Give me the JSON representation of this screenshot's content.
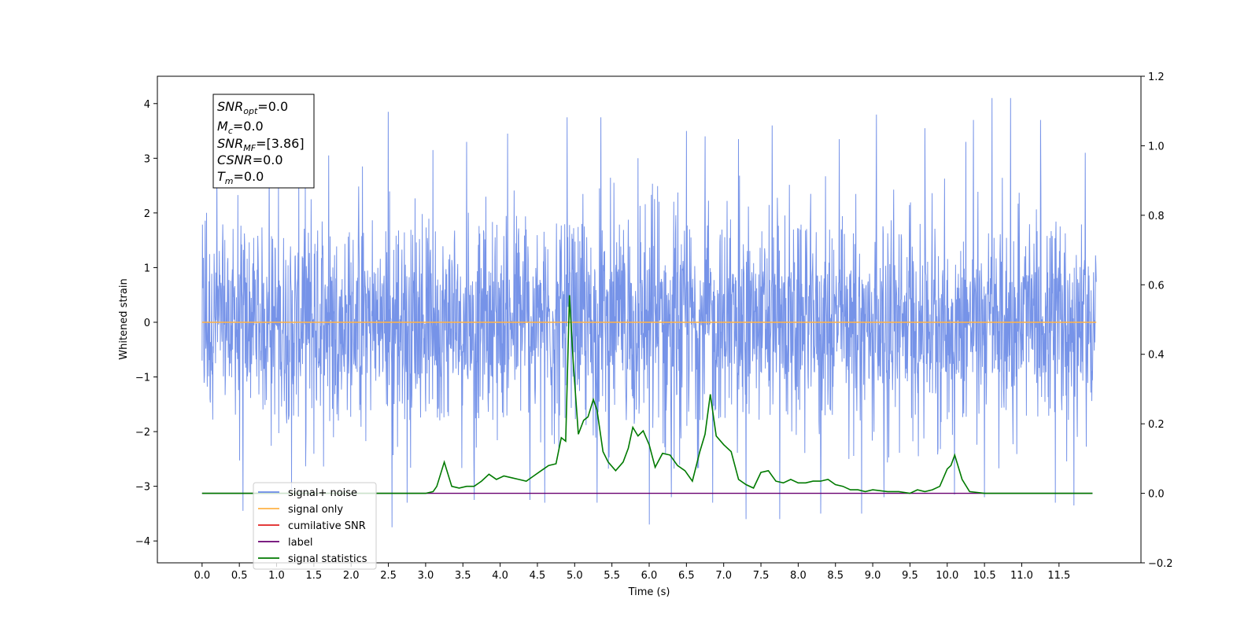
{
  "chart_data": {
    "type": "line",
    "xlabel": "Time (s)",
    "ylabel": "Whitened strain",
    "xlim": [
      -0.6,
      12.6
    ],
    "ylim": [
      -4.4,
      4.5
    ],
    "ylim_right": [
      -0.2,
      1.2
    ],
    "x_ticks": [
      0.0,
      0.5,
      1.0,
      1.5,
      2.0,
      2.5,
      3.0,
      3.5,
      4.0,
      4.5,
      5.0,
      5.5,
      6.0,
      6.5,
      7.0,
      7.5,
      8.0,
      8.5,
      9.0,
      9.5,
      10.0,
      10.5,
      11.0,
      11.5
    ],
    "x_tick_labels": [
      "0.0",
      "0.5",
      "1.0",
      "1.5",
      "2.0",
      "2.5",
      "3.0",
      "3.5",
      "4.0",
      "4.5",
      "5.0",
      "5.5",
      "6.0",
      "6.5",
      "7.0",
      "7.5",
      "8.0",
      "8.5",
      "9.0",
      "9.5",
      "10.0",
      "10.5",
      "11.0",
      "11.5"
    ],
    "y_ticks": [
      4,
      3,
      2,
      1,
      0,
      -1,
      -2,
      -3,
      -4
    ],
    "y_tick_labels": [
      "4",
      "3",
      "2",
      "1",
      "0",
      "−1",
      "−2",
      "−3",
      "−4"
    ],
    "y_right_ticks": [
      1.2,
      1.0,
      0.8,
      0.6,
      0.4,
      0.2,
      0.0,
      -0.2
    ],
    "y_right_tick_labels": [
      "1.2",
      "1.0",
      "0.8",
      "0.6",
      "0.4",
      "0.2",
      "0.0",
      "−0.2"
    ],
    "grid": false,
    "legend_position": "lower-left",
    "series": [
      {
        "name": "signal+ noise",
        "color": "#6a8ae6",
        "axis": "left",
        "description_kind": "noise",
        "x_range": [
          0.0,
          12.0
        ],
        "envelope": [
          -2.7,
          2.7
        ],
        "spikes": [
          [
            0.2,
            2.85
          ],
          [
            0.55,
            -3.45
          ],
          [
            0.9,
            3.0
          ],
          [
            1.2,
            -3.05
          ],
          [
            1.7,
            3.05
          ],
          [
            2.15,
            2.85
          ],
          [
            2.5,
            3.85
          ],
          [
            2.55,
            -3.75
          ],
          [
            2.75,
            -3.3
          ],
          [
            3.1,
            3.15
          ],
          [
            3.55,
            3.3
          ],
          [
            3.65,
            -3.25
          ],
          [
            4.1,
            3.45
          ],
          [
            4.4,
            -3.25
          ],
          [
            4.6,
            -3.3
          ],
          [
            4.9,
            3.75
          ],
          [
            5.3,
            -3.3
          ],
          [
            5.35,
            3.75
          ],
          [
            5.85,
            3.0
          ],
          [
            6.0,
            -3.7
          ],
          [
            6.3,
            -3.2
          ],
          [
            6.5,
            3.5
          ],
          [
            6.75,
            3.4
          ],
          [
            6.85,
            -3.3
          ],
          [
            7.2,
            3.35
          ],
          [
            7.3,
            -3.6
          ],
          [
            7.65,
            3.6
          ],
          [
            7.75,
            -3.6
          ],
          [
            8.3,
            -3.5
          ],
          [
            8.55,
            3.35
          ],
          [
            8.85,
            -3.5
          ],
          [
            9.05,
            3.8
          ],
          [
            9.15,
            -3.2
          ],
          [
            9.7,
            3.55
          ],
          [
            10.1,
            -3.15
          ],
          [
            10.25,
            3.3
          ],
          [
            10.35,
            3.7
          ],
          [
            10.5,
            -3.2
          ],
          [
            10.6,
            4.1
          ],
          [
            10.85,
            4.1
          ],
          [
            11.25,
            3.7
          ],
          [
            11.45,
            -3.3
          ],
          [
            11.7,
            -3.35
          ],
          [
            11.85,
            3.1
          ]
        ]
      },
      {
        "name": "signal only",
        "color": "#ffb347",
        "axis": "left",
        "x": [
          0.0,
          12.0
        ],
        "y": [
          0.0,
          0.0
        ]
      },
      {
        "name": "cumilative SNR",
        "color": "#e02020",
        "axis": "right",
        "x": [],
        "y": []
      },
      {
        "name": "label",
        "color": "#6a0070",
        "axis": "right",
        "x": [
          0.0,
          11.95
        ],
        "y": [
          0.0,
          0.0
        ]
      },
      {
        "name": "signal statistics",
        "color": "#007a00",
        "axis": "right",
        "x": [
          0.0,
          1.0,
          2.0,
          2.5,
          3.0,
          3.1,
          3.15,
          3.25,
          3.35,
          3.45,
          3.55,
          3.65,
          3.75,
          3.85,
          3.95,
          4.05,
          4.15,
          4.25,
          4.35,
          4.45,
          4.55,
          4.65,
          4.75,
          4.82,
          4.88,
          4.93,
          4.98,
          5.05,
          5.12,
          5.18,
          5.25,
          5.3,
          5.38,
          5.45,
          5.55,
          5.65,
          5.72,
          5.78,
          5.85,
          5.92,
          6.0,
          6.08,
          6.18,
          6.28,
          6.38,
          6.48,
          6.58,
          6.68,
          6.75,
          6.82,
          6.9,
          7.0,
          7.1,
          7.2,
          7.3,
          7.4,
          7.5,
          7.6,
          7.7,
          7.8,
          7.9,
          8.0,
          8.1,
          8.2,
          8.3,
          8.4,
          8.5,
          8.6,
          8.7,
          8.8,
          8.9,
          9.0,
          9.2,
          9.35,
          9.5,
          9.6,
          9.7,
          9.8,
          9.9,
          10.0,
          10.05,
          10.1,
          10.2,
          10.3,
          10.5,
          11.0,
          11.95
        ],
        "y": [
          0.0,
          0.0,
          0.0,
          0.0,
          0.0,
          0.005,
          0.02,
          0.09,
          0.02,
          0.015,
          0.02,
          0.02,
          0.035,
          0.055,
          0.04,
          0.05,
          0.045,
          0.04,
          0.035,
          0.05,
          0.065,
          0.08,
          0.085,
          0.16,
          0.15,
          0.57,
          0.38,
          0.17,
          0.21,
          0.22,
          0.27,
          0.24,
          0.12,
          0.09,
          0.065,
          0.09,
          0.13,
          0.19,
          0.165,
          0.18,
          0.14,
          0.075,
          0.115,
          0.11,
          0.08,
          0.065,
          0.035,
          0.12,
          0.17,
          0.285,
          0.165,
          0.14,
          0.12,
          0.04,
          0.025,
          0.015,
          0.06,
          0.065,
          0.035,
          0.03,
          0.04,
          0.03,
          0.03,
          0.035,
          0.035,
          0.04,
          0.025,
          0.02,
          0.01,
          0.01,
          0.005,
          0.01,
          0.005,
          0.005,
          0.0,
          0.01,
          0.005,
          0.01,
          0.02,
          0.07,
          0.08,
          0.11,
          0.04,
          0.005,
          0.0,
          0.0,
          0.0
        ]
      }
    ],
    "annotation_lines": [
      {
        "label": "SNR",
        "sub": "opt",
        "value": "=0.0"
      },
      {
        "label": "M",
        "sub": "c",
        "value": "=0.0"
      },
      {
        "label": "SNR",
        "sub": "MF",
        "value": "=[3.86]"
      },
      {
        "label": "CSNR",
        "sub": "",
        "value": "=0.0"
      },
      {
        "label": "T",
        "sub": "m",
        "value": "=0.0"
      }
    ]
  }
}
